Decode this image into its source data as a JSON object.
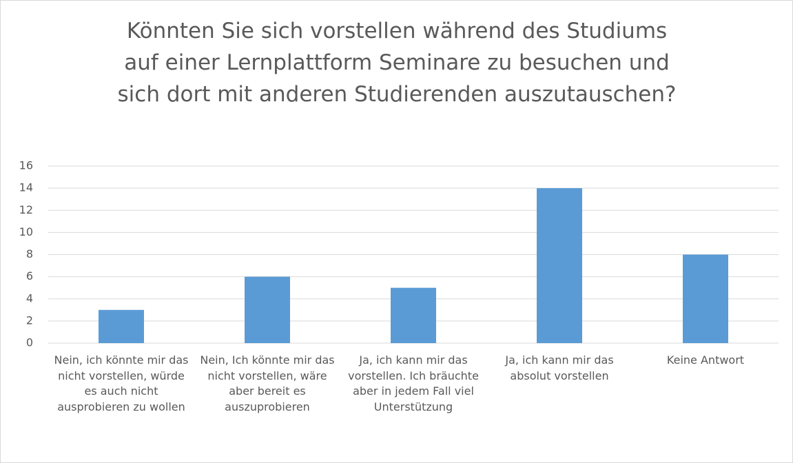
{
  "chart_data": {
    "type": "bar",
    "title": "Könnten Sie sich vorstellen während des Studiums auf einer Lernplattform Seminare zu besuchen und sich dort mit anderen Studierenden auszutauschen?",
    "categories": [
      "Nein, ich könnte mir das nicht vorstellen, würde es auch nicht ausprobieren zu wollen",
      "Nein, Ich könnte mir das nicht vorstellen, wäre aber bereit es auszuprobieren",
      "Ja, ich kann mir das vorstellen. Ich bräuchte aber in jedem Fall viel Unterstützung",
      "Ja, ich kann mir das absolut vorstellen",
      "Keine Antwort"
    ],
    "values": [
      3,
      6,
      5,
      14,
      8
    ],
    "color": "#5b9bd5",
    "ylim": [
      0,
      16
    ],
    "yticks": [
      0,
      2,
      4,
      6,
      8,
      10,
      12,
      14,
      16
    ],
    "grid": true
  }
}
